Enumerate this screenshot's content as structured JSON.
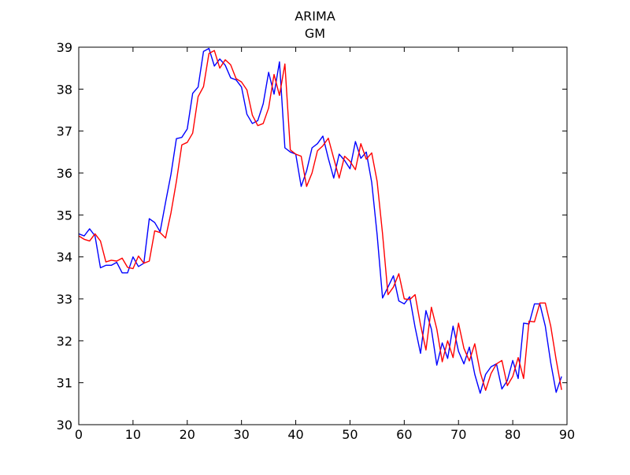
{
  "chart_data": {
    "type": "line",
    "title": "ARIMA",
    "subtitle": "GM",
    "xlabel": "",
    "ylabel": "",
    "xlim": [
      0,
      90
    ],
    "ylim": [
      30,
      39
    ],
    "xticks": [
      0,
      10,
      20,
      30,
      40,
      50,
      60,
      70,
      80,
      90
    ],
    "yticks": [
      30,
      31,
      32,
      33,
      34,
      35,
      36,
      37,
      38,
      39
    ],
    "grid": false,
    "legend": "none",
    "series": [
      {
        "color": "#0000ff",
        "x": [
          0,
          1,
          2,
          3,
          4,
          5,
          6,
          7,
          8,
          9,
          10,
          11,
          12,
          13,
          14,
          15,
          16,
          17,
          18,
          19,
          20,
          21,
          22,
          23,
          24,
          25,
          26,
          27,
          28,
          29,
          30,
          31,
          32,
          33,
          34,
          35,
          36,
          37,
          38,
          39,
          40,
          41,
          42,
          43,
          44,
          45,
          46,
          47,
          48,
          49,
          50,
          51,
          52,
          53,
          54,
          55,
          56,
          57,
          58,
          59,
          60,
          61,
          62,
          63,
          64,
          65,
          66,
          67,
          68,
          69,
          70,
          71,
          72,
          73,
          74,
          75,
          76,
          77,
          78,
          79,
          80,
          81,
          82,
          83,
          84,
          85,
          86,
          87,
          88,
          89
        ],
        "y": [
          34.55,
          34.5,
          34.67,
          34.5,
          33.74,
          33.8,
          33.8,
          33.87,
          33.62,
          33.62,
          34.0,
          33.77,
          33.85,
          34.91,
          34.82,
          34.6,
          35.3,
          35.97,
          36.82,
          36.85,
          37.05,
          37.9,
          38.05,
          38.9,
          38.97,
          38.55,
          38.72,
          38.57,
          38.27,
          38.22,
          38.05,
          37.4,
          37.18,
          37.25,
          37.65,
          38.4,
          37.88,
          38.65,
          36.6,
          36.5,
          36.45,
          35.68,
          36.05,
          36.6,
          36.7,
          36.88,
          36.35,
          35.88,
          36.45,
          36.3,
          36.1,
          36.75,
          36.35,
          36.5,
          35.78,
          34.53,
          33.02,
          33.28,
          33.55,
          32.95,
          32.88,
          33.05,
          32.32,
          31.7,
          32.72,
          32.28,
          31.42,
          31.95,
          31.58,
          32.35,
          31.75,
          31.45,
          31.85,
          31.2,
          30.75,
          31.2,
          31.38,
          31.45,
          30.85,
          31.05,
          31.53,
          31.1,
          32.42,
          32.4,
          32.88,
          32.88,
          32.35,
          31.48,
          30.77,
          31.15
        ]
      },
      {
        "color": "#ff0000",
        "x": [
          0,
          1,
          2,
          3,
          4,
          5,
          6,
          7,
          8,
          9,
          10,
          11,
          12,
          13,
          14,
          15,
          16,
          17,
          18,
          19,
          20,
          21,
          22,
          23,
          24,
          25,
          26,
          27,
          28,
          29,
          30,
          31,
          32,
          33,
          34,
          35,
          36,
          37,
          38,
          39,
          40,
          41,
          42,
          43,
          44,
          45,
          46,
          47,
          48,
          49,
          50,
          51,
          52,
          53,
          54,
          55,
          56,
          57,
          58,
          59,
          60,
          61,
          62,
          63,
          64,
          65,
          66,
          67,
          68,
          69,
          70,
          71,
          72,
          73,
          74,
          75,
          76,
          77,
          78,
          79,
          80,
          81,
          82,
          83,
          84,
          85,
          86,
          87,
          88,
          89
        ],
        "y": [
          34.5,
          34.42,
          34.38,
          34.55,
          34.38,
          33.88,
          33.92,
          33.9,
          33.97,
          33.75,
          33.72,
          34.02,
          33.85,
          33.9,
          34.62,
          34.58,
          34.45,
          35.05,
          35.8,
          36.67,
          36.73,
          36.95,
          37.82,
          38.06,
          38.85,
          38.92,
          38.5,
          38.7,
          38.58,
          38.25,
          38.17,
          37.98,
          37.38,
          37.13,
          37.18,
          37.55,
          38.35,
          37.85,
          38.6,
          36.55,
          36.45,
          36.4,
          35.68,
          36.0,
          36.53,
          36.65,
          36.83,
          36.35,
          35.88,
          36.4,
          36.28,
          36.08,
          36.7,
          36.33,
          36.48,
          35.8,
          34.55,
          33.1,
          33.28,
          33.6,
          33.0,
          32.98,
          33.1,
          32.38,
          31.78,
          32.8,
          32.28,
          31.5,
          32.0,
          31.6,
          32.42,
          31.82,
          31.52,
          31.93,
          31.25,
          30.82,
          31.22,
          31.45,
          31.53,
          30.93,
          31.15,
          31.6,
          31.1,
          32.47,
          32.45,
          32.9,
          32.9,
          32.35,
          31.55,
          30.83
        ]
      }
    ]
  }
}
